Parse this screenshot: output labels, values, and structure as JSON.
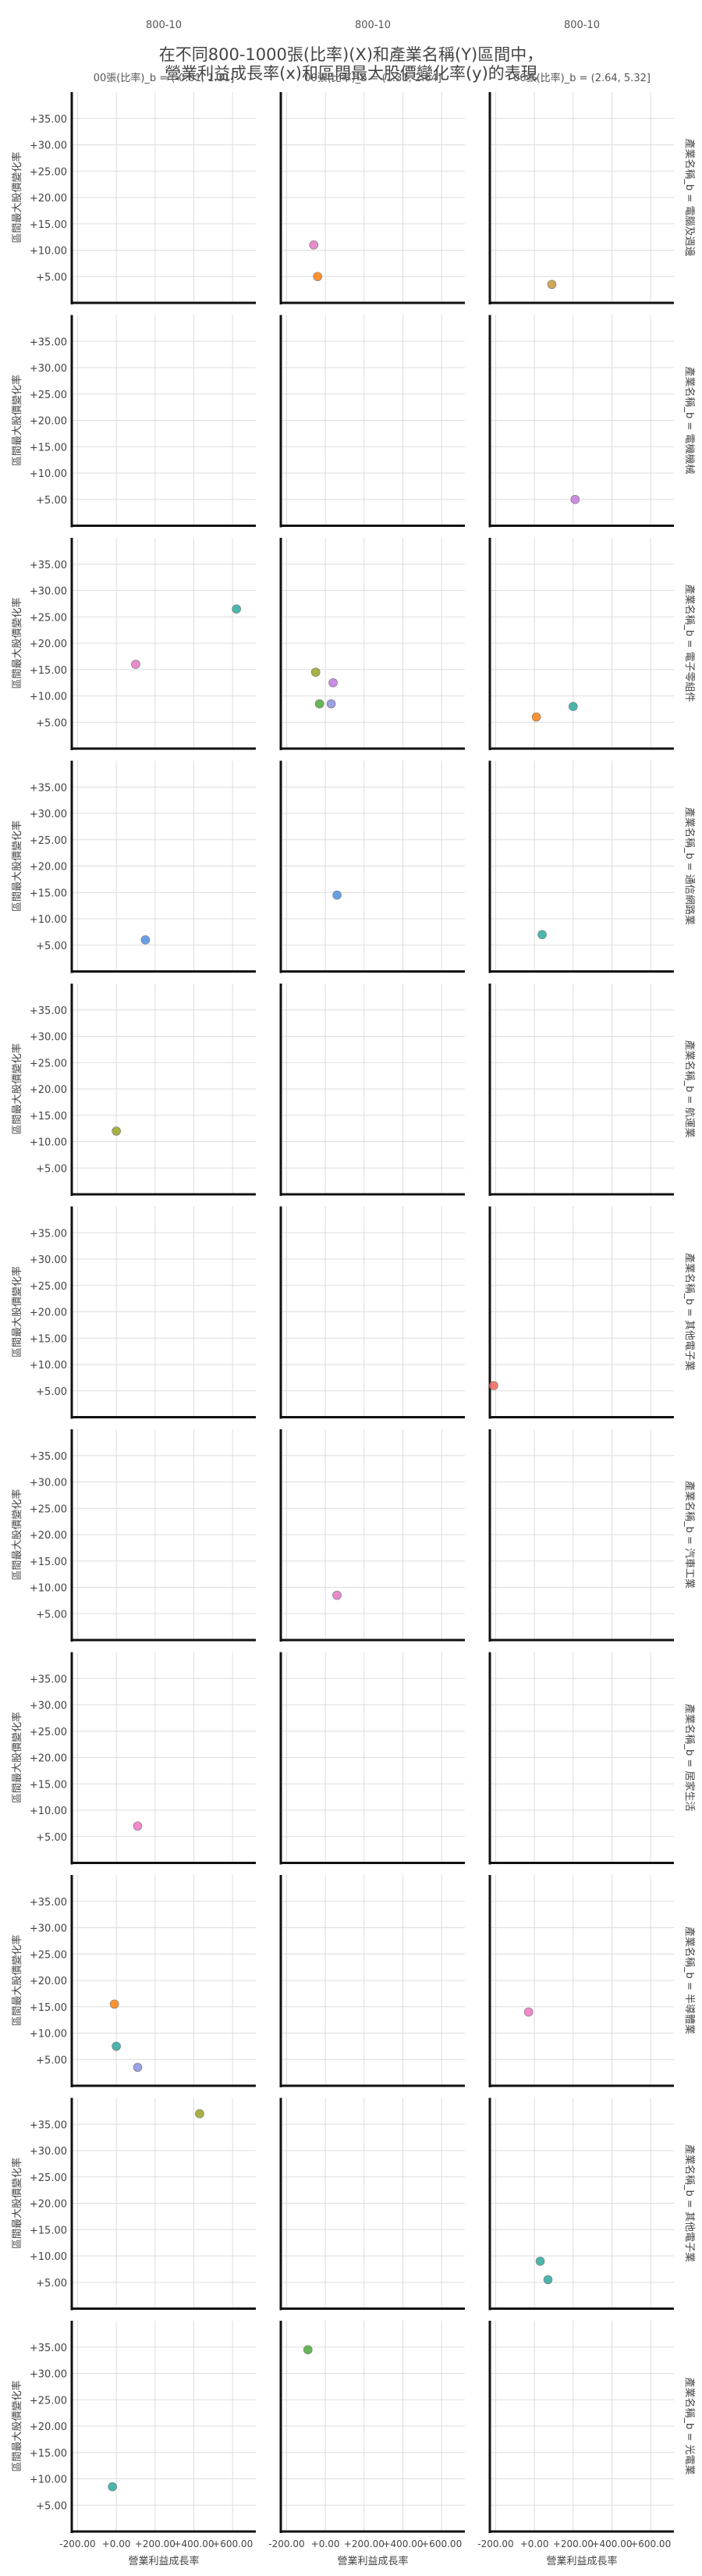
{
  "chart_data": {
    "type": "scatter",
    "title": [
      "在不同800-1000張(比率)(X)和產業名稱(Y)區間中，",
      "營業利益成長率(x)和區間最大股價變化率(y)的表現"
    ],
    "xlabel": "營業利益成長率",
    "ylabel": "區間最大股價變化率",
    "xlim": [
      -230,
      720
    ],
    "ylim": [
      0,
      40
    ],
    "xticks": [
      -200,
      0,
      200,
      400,
      600
    ],
    "xtick_labels": [
      "-200.00",
      "+0.00",
      "+200.00",
      "+400.00",
      "+600.00"
    ],
    "yticks": [
      5,
      10,
      15,
      20,
      25,
      30,
      35
    ],
    "ytick_labels": [
      "+5.00",
      "+10.00",
      "+15.00",
      "+20.00",
      "+25.00",
      "+30.00",
      "+35.00"
    ],
    "grid": true,
    "col_titles": [
      "800-10\n00張(比率)_b = (-0.01, 1.31]",
      "800-10\n00張(比率)_b = (1.31, 2.64]",
      "800-10\n00張(比率)_b = (2.64, 5.32]"
    ],
    "row_titles": [
      "產業名稱_b = 電腦及週邊",
      "產業名稱_b = 電機機械",
      "產業名稱_b = 電子零組件",
      "產業名稱_b = 通信網路業",
      "產業名稱_b = 航運業",
      "產業名稱_b = 其他電子業",
      "產業名稱_b = 汽車工業",
      "產業名稱_b = 居家生活",
      "產業名稱_b = 半導體業",
      "產業名稱_b = 其他電子業",
      "產業名稱_b = 光電業"
    ],
    "points": [
      {
        "row": 0,
        "col": 1,
        "x": -60,
        "y": 11.0,
        "color": "#e377c2"
      },
      {
        "row": 0,
        "col": 1,
        "x": -40,
        "y": 5.0,
        "color": "#ff7f0e"
      },
      {
        "row": 0,
        "col": 2,
        "x": 90,
        "y": 3.5,
        "color": "#c49a3a"
      },
      {
        "row": 1,
        "col": 2,
        "x": 210,
        "y": 5.0,
        "color": "#c279e0"
      },
      {
        "row": 2,
        "col": 0,
        "x": 620,
        "y": 26.5,
        "color": "#2ca9a0"
      },
      {
        "row": 2,
        "col": 0,
        "x": 100,
        "y": 16.0,
        "color": "#e377c2"
      },
      {
        "row": 2,
        "col": 1,
        "x": -50,
        "y": 14.5,
        "color": "#9aa323"
      },
      {
        "row": 2,
        "col": 1,
        "x": 40,
        "y": 12.5,
        "color": "#c279e0"
      },
      {
        "row": 2,
        "col": 1,
        "x": -30,
        "y": 8.5,
        "color": "#4caa3a"
      },
      {
        "row": 2,
        "col": 1,
        "x": 30,
        "y": 8.5,
        "color": "#8c8fe0"
      },
      {
        "row": 2,
        "col": 2,
        "x": 200,
        "y": 8.0,
        "color": "#2ca9a0"
      },
      {
        "row": 2,
        "col": 2,
        "x": 10,
        "y": 6.0,
        "color": "#ff7f0e"
      },
      {
        "row": 3,
        "col": 0,
        "x": 150,
        "y": 6.0,
        "color": "#4c8ee0"
      },
      {
        "row": 3,
        "col": 1,
        "x": 60,
        "y": 14.5,
        "color": "#4c8ee0"
      },
      {
        "row": 3,
        "col": 2,
        "x": 40,
        "y": 7.0,
        "color": "#2ca9a0"
      },
      {
        "row": 4,
        "col": 0,
        "x": 0,
        "y": 12.0,
        "color": "#9aa323"
      },
      {
        "row": 5,
        "col": 2,
        "x": -210,
        "y": 6.0,
        "color": "#f0665a"
      },
      {
        "row": 6,
        "col": 1,
        "x": 60,
        "y": 8.5,
        "color": "#e377c2"
      },
      {
        "row": 7,
        "col": 0,
        "x": 110,
        "y": 7.0,
        "color": "#f074c0"
      },
      {
        "row": 8,
        "col": 0,
        "x": -10,
        "y": 15.5,
        "color": "#ff7f0e"
      },
      {
        "row": 8,
        "col": 0,
        "x": 0,
        "y": 7.5,
        "color": "#2ca9a0"
      },
      {
        "row": 8,
        "col": 0,
        "x": 110,
        "y": 3.5,
        "color": "#8c8fe0"
      },
      {
        "row": 8,
        "col": 2,
        "x": -30,
        "y": 14.0,
        "color": "#f074c0"
      },
      {
        "row": 9,
        "col": 0,
        "x": 430,
        "y": 37.0,
        "color": "#9aa323"
      },
      {
        "row": 9,
        "col": 2,
        "x": 30,
        "y": 9.0,
        "color": "#2ca9a0"
      },
      {
        "row": 9,
        "col": 2,
        "x": 70,
        "y": 5.5,
        "color": "#2ca9a0"
      },
      {
        "row": 10,
        "col": 0,
        "x": -20,
        "y": 8.5,
        "color": "#2ca9a0"
      },
      {
        "row": 10,
        "col": 1,
        "x": -90,
        "y": 34.5,
        "color": "#4caa3a"
      }
    ]
  }
}
